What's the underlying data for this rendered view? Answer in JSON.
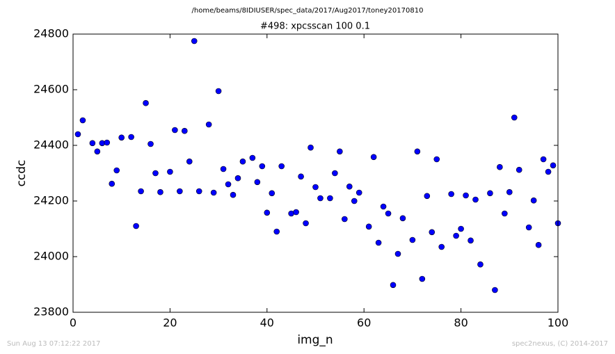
{
  "chart_data": {
    "type": "line",
    "suptitle": "/home/beams/8IDIUSER/spec_data/2017/Aug2017/toney20170810",
    "title": "#498: xpcsscan 100 0.1",
    "xlabel": "img_n",
    "ylabel": "ccdc",
    "footer_left": "Sun Aug 13 07:12:22 2017",
    "footer_right": "spec2nexus, (C) 2014-2017",
    "color": "#0000ff",
    "x": [
      1,
      2,
      4,
      5,
      6,
      7,
      8,
      9,
      10,
      12,
      13,
      14,
      15,
      16,
      17,
      18,
      20,
      21,
      22,
      23,
      24,
      25,
      26,
      28,
      29,
      30,
      31,
      32,
      33,
      34,
      35,
      37,
      38,
      39,
      40,
      41,
      42,
      43,
      45,
      46,
      47,
      48,
      49,
      50,
      51,
      53,
      54,
      55,
      56,
      57,
      58,
      59,
      61,
      62,
      63,
      64,
      65,
      66,
      67,
      68,
      70,
      71,
      72,
      73,
      74,
      75,
      76,
      78,
      79,
      80,
      81,
      82,
      83,
      84,
      86,
      87,
      88,
      89,
      90,
      91,
      92,
      94,
      95,
      96,
      97,
      98,
      99,
      100
    ],
    "values": [
      24440,
      24490,
      24408,
      24378,
      24408,
      24410,
      24262,
      24310,
      24428,
      24430,
      24110,
      24235,
      24552,
      24405,
      24300,
      24232,
      24305,
      24455,
      24235,
      24452,
      24342,
      24775,
      24235,
      24475,
      24230,
      24595,
      24315,
      24260,
      24222,
      24282,
      24342,
      24355,
      24268,
      24325,
      24158,
      24228,
      24090,
      24325,
      24155,
      24160,
      24288,
      24120,
      24392,
      24250,
      24210,
      24210,
      24300,
      24378,
      24135,
      24252,
      24200,
      24230,
      24108,
      24358,
      24050,
      24180,
      24155,
      23898,
      24010,
      24138,
      24060,
      24378,
      23920,
      24218,
      24088,
      24350,
      24035,
      24225,
      24075,
      24100,
      24220,
      24058,
      24205,
      23972,
      24228,
      23880,
      24322,
      24155,
      24232,
      24500,
      24312,
      24105,
      24202,
      24042,
      24350,
      24305,
      24328,
      24120
    ],
    "xlim": [
      0,
      100
    ],
    "xticks": [
      0,
      20,
      40,
      60,
      80,
      100
    ],
    "ylim": [
      23800,
      24800
    ],
    "yticks": [
      23800,
      24000,
      24200,
      24400,
      24600,
      24800
    ]
  }
}
